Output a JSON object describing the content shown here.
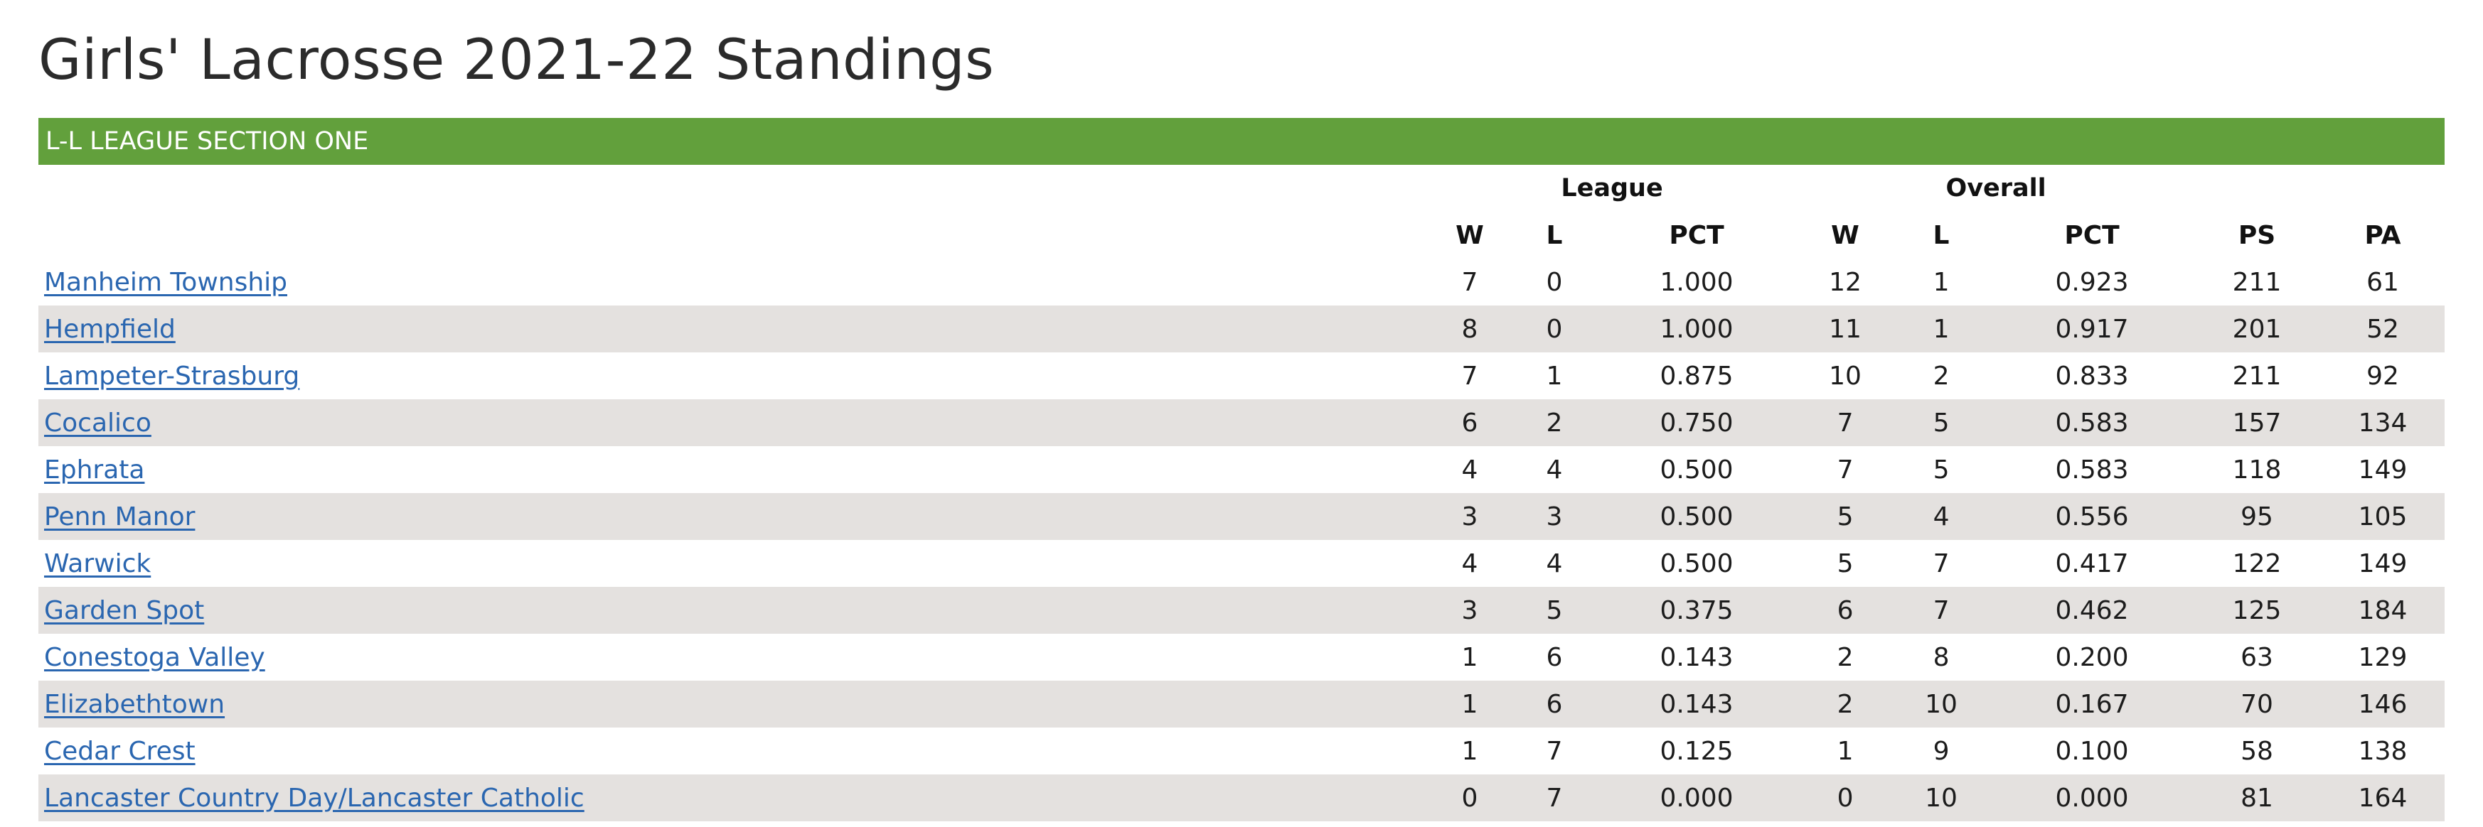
{
  "page": {
    "title": "Girls' Lacrosse 2021-22 Standings"
  },
  "section": {
    "name": "L-L LEAGUE SECTION ONE",
    "header_color": "#62a03c"
  },
  "table": {
    "groups": {
      "league": "League",
      "overall": "Overall"
    },
    "columns": [
      "W",
      "L",
      "PCT",
      "W",
      "L",
      "PCT",
      "PS",
      "PA"
    ],
    "rows": [
      {
        "team": "Manheim Township",
        "values": [
          "7",
          "0",
          "1.000",
          "12",
          "1",
          "0.923",
          "211",
          "61"
        ]
      },
      {
        "team": "Hempfield",
        "values": [
          "8",
          "0",
          "1.000",
          "11",
          "1",
          "0.917",
          "201",
          "52"
        ]
      },
      {
        "team": "Lampeter-Strasburg",
        "values": [
          "7",
          "1",
          "0.875",
          "10",
          "2",
          "0.833",
          "211",
          "92"
        ]
      },
      {
        "team": "Cocalico",
        "values": [
          "6",
          "2",
          "0.750",
          "7",
          "5",
          "0.583",
          "157",
          "134"
        ]
      },
      {
        "team": "Ephrata",
        "values": [
          "4",
          "4",
          "0.500",
          "7",
          "5",
          "0.583",
          "118",
          "149"
        ]
      },
      {
        "team": "Penn Manor",
        "values": [
          "3",
          "3",
          "0.500",
          "5",
          "4",
          "0.556",
          "95",
          "105"
        ]
      },
      {
        "team": "Warwick",
        "values": [
          "4",
          "4",
          "0.500",
          "5",
          "7",
          "0.417",
          "122",
          "149"
        ]
      },
      {
        "team": "Garden Spot",
        "values": [
          "3",
          "5",
          "0.375",
          "6",
          "7",
          "0.462",
          "125",
          "184"
        ]
      },
      {
        "team": "Conestoga Valley",
        "values": [
          "1",
          "6",
          "0.143",
          "2",
          "8",
          "0.200",
          "63",
          "129"
        ]
      },
      {
        "team": "Elizabethtown",
        "values": [
          "1",
          "6",
          "0.143",
          "2",
          "10",
          "0.167",
          "70",
          "146"
        ]
      },
      {
        "team": "Cedar Crest",
        "values": [
          "1",
          "7",
          "0.125",
          "1",
          "9",
          "0.100",
          "58",
          "138"
        ]
      },
      {
        "team": "Lancaster Country Day/Lancaster Catholic",
        "values": [
          "0",
          "7",
          "0.000",
          "0",
          "10",
          "0.000",
          "81",
          "164"
        ]
      }
    ]
  }
}
